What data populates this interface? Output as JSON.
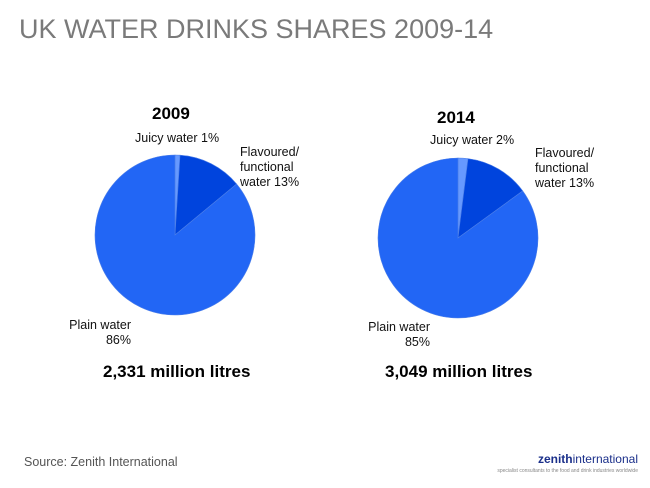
{
  "title": "UK WATER DRINKS SHARES 2009-14",
  "source": "Source: Zenith International",
  "logo": {
    "name_bold": "zenith",
    "name_regular": "international",
    "tagline": "specialist consultants to the food and drink industries worldwide"
  },
  "colors": {
    "plain": "#2266f5",
    "flavoured": "#0044dd",
    "juicy": "#6699ff",
    "title": "#7a7a7a"
  },
  "charts": [
    {
      "year": "2009",
      "total": "2,331 million litres",
      "labels": {
        "juicy": "Juicy water 1%",
        "flavoured_1": "Flavoured/",
        "flavoured_2": "functional",
        "flavoured_3": "water 13%",
        "plain_1": "Plain water",
        "plain_2": "86%"
      }
    },
    {
      "year": "2014",
      "total": "3,049 million litres",
      "labels": {
        "juicy": "Juicy water 2%",
        "flavoured_1": "Flavoured/",
        "flavoured_2": "functional",
        "flavoured_3": "water 13%",
        "plain_1": "Plain water",
        "plain_2": "85%"
      }
    }
  ],
  "chart_data": [
    {
      "type": "pie",
      "title": "2009",
      "subtitle": "2,331 million litres",
      "categories": [
        "Juicy water",
        "Flavoured/functional water",
        "Plain water"
      ],
      "values": [
        1,
        13,
        86
      ],
      "unit": "%",
      "start_angle": "12 o'clock, clockwise"
    },
    {
      "type": "pie",
      "title": "2014",
      "subtitle": "3,049 million litres",
      "categories": [
        "Juicy water",
        "Flavoured/functional water",
        "Plain water"
      ],
      "values": [
        2,
        13,
        85
      ],
      "unit": "%",
      "start_angle": "12 o'clock, clockwise"
    }
  ]
}
